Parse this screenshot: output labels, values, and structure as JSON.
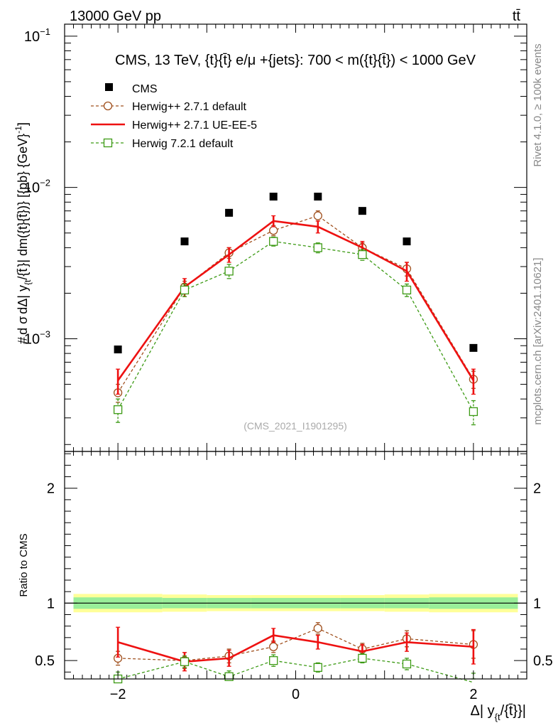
{
  "header": {
    "energy_label": "13000 GeV pp",
    "process_label": "tt̄"
  },
  "side_labels": {
    "rivet": "Rivet 4.1.0, ≥ 100k events",
    "mcplots": "mcplots.cern.ch [arXiv:2401.10621]"
  },
  "colors": {
    "cms": "#000000",
    "herwig_default": "#a0501e",
    "herwig_ueee5": "#ee1111",
    "herwig72": "#3c9a14",
    "band_outer": "#ffff99",
    "band_inner": "#99ee99"
  },
  "chart_data": [
    {
      "type": "scatter",
      "panel": "main",
      "title": "CMS, 13 TeV, {t}{t̄} e/μ +{jets}: 700 < m({t}{t̄}) < 1000 GeV",
      "ylabel": "# dσ / dΔ| y_{t}/{t̄}}| dm({t}{t̄}) [{pb} {GeV}^-1]",
      "ylabel_parts": {
        "hash": "#",
        "num": "d σ",
        "den": "dΔ| y",
        "sub": "{t",
        "tail": "/{t̄",
        "rest": "}| dm({t}{t̄})} [{pb} {GeV}",
        "exp": "-1",
        "close": "]"
      },
      "yscale": "log",
      "ylim": [
        0.00018,
        0.12
      ],
      "xlim": [
        -2.6,
        2.6
      ],
      "ytick_labels": [
        {
          "value": 0.1,
          "base": "10",
          "exp": "−1"
        },
        {
          "value": 0.01,
          "base": "10",
          "exp": "−2"
        },
        {
          "value": 0.001,
          "base": "10",
          "exp": "−3"
        }
      ],
      "watermark": "(CMS_2021_I1901295)",
      "legend": [
        "CMS",
        "Herwig++ 2.7.1 default",
        "Herwig++ 2.7.1 UE-EE-5",
        "Herwig 7.2.1 default"
      ],
      "x": [
        -2.0,
        -1.25,
        -0.75,
        -0.25,
        0.25,
        0.75,
        1.25,
        2.0
      ],
      "series": [
        {
          "name": "CMS",
          "values": [
            0.00085,
            0.0044,
            0.0068,
            0.0087,
            0.0087,
            0.007,
            0.0044,
            0.00087
          ],
          "err": [
            0,
            0,
            0,
            0,
            0,
            0,
            0,
            0
          ]
        },
        {
          "name": "Herwig++ 2.7.1 default",
          "values": [
            0.00044,
            0.0022,
            0.0037,
            0.0052,
            0.0065,
            0.004,
            0.0029,
            0.00054
          ],
          "err": [
            6e-05,
            0.0002,
            0.0003,
            0.0004,
            0.0005,
            0.0003,
            0.0003,
            7e-05
          ]
        },
        {
          "name": "Herwig++ 2.7.1 UE-EE-5",
          "values": [
            0.00053,
            0.0022,
            0.0036,
            0.006,
            0.0055,
            0.004,
            0.0028,
            0.00053
          ],
          "err": [
            0.0001,
            0.0003,
            0.0004,
            0.0005,
            0.0005,
            0.0004,
            0.0004,
            0.0001
          ]
        },
        {
          "name": "Herwig 7.2.1 default",
          "values": [
            0.00034,
            0.0021,
            0.0028,
            0.0044,
            0.004,
            0.0036,
            0.0021,
            0.00033
          ],
          "err": [
            6e-05,
            0.0002,
            0.0003,
            0.0003,
            0.0003,
            0.0003,
            0.0002,
            6e-05
          ]
        }
      ]
    },
    {
      "type": "scatter",
      "panel": "ratio",
      "ylabel": "Ratio to CMS",
      "xlabel": "Δ| y_{t}/{t̄}}|",
      "xlabel_parts": {
        "main": "Δ| y",
        "sub": "{t",
        "tail": "/{t̄}}|"
      },
      "ylim": [
        0.34,
        2.32
      ],
      "xlim": [
        -2.6,
        2.6
      ],
      "xtick_labels": [
        {
          "value": -2,
          "label": "−2"
        },
        {
          "value": 0,
          "label": "0"
        },
        {
          "value": 2,
          "label": "2"
        }
      ],
      "ytick_labels": [
        {
          "value": 2,
          "label": "2"
        },
        {
          "value": 1,
          "label": "1"
        },
        {
          "value": 0.5,
          "label": "0.5"
        }
      ],
      "band": {
        "edges": [
          -2.5,
          -1.5,
          -1.0,
          -0.5,
          0.0,
          0.5,
          1.0,
          1.5,
          2.5
        ],
        "outer": [
          0.08,
          0.075,
          0.07,
          0.07,
          0.07,
          0.07,
          0.075,
          0.08
        ],
        "inner": [
          0.05,
          0.045,
          0.045,
          0.045,
          0.045,
          0.045,
          0.045,
          0.05
        ]
      },
      "x": [
        -2.0,
        -1.25,
        -0.75,
        -0.25,
        0.25,
        0.75,
        1.25,
        2.0
      ],
      "series": [
        {
          "name": "Herwig++ 2.7.1 default",
          "values": [
            0.52,
            0.5,
            0.54,
            0.62,
            0.78,
            0.6,
            0.69,
            0.64
          ],
          "err": [
            0.06,
            0.07,
            0.06,
            0.05,
            0.05,
            0.05,
            0.07,
            0.12
          ]
        },
        {
          "name": "Herwig++ 2.7.1 UE-EE-5",
          "values": [
            0.66,
            0.49,
            0.52,
            0.72,
            0.66,
            0.58,
            0.66,
            0.62
          ],
          "err": [
            0.13,
            0.08,
            0.07,
            0.06,
            0.06,
            0.06,
            0.08,
            0.15
          ]
        },
        {
          "name": "Herwig 7.2.1 default",
          "values": [
            0.34,
            0.49,
            0.36,
            0.5,
            0.44,
            0.52,
            0.47,
            0.31
          ],
          "err": [
            0.06,
            0.05,
            0.05,
            0.05,
            0.04,
            0.04,
            0.05,
            0.08
          ]
        }
      ]
    }
  ]
}
